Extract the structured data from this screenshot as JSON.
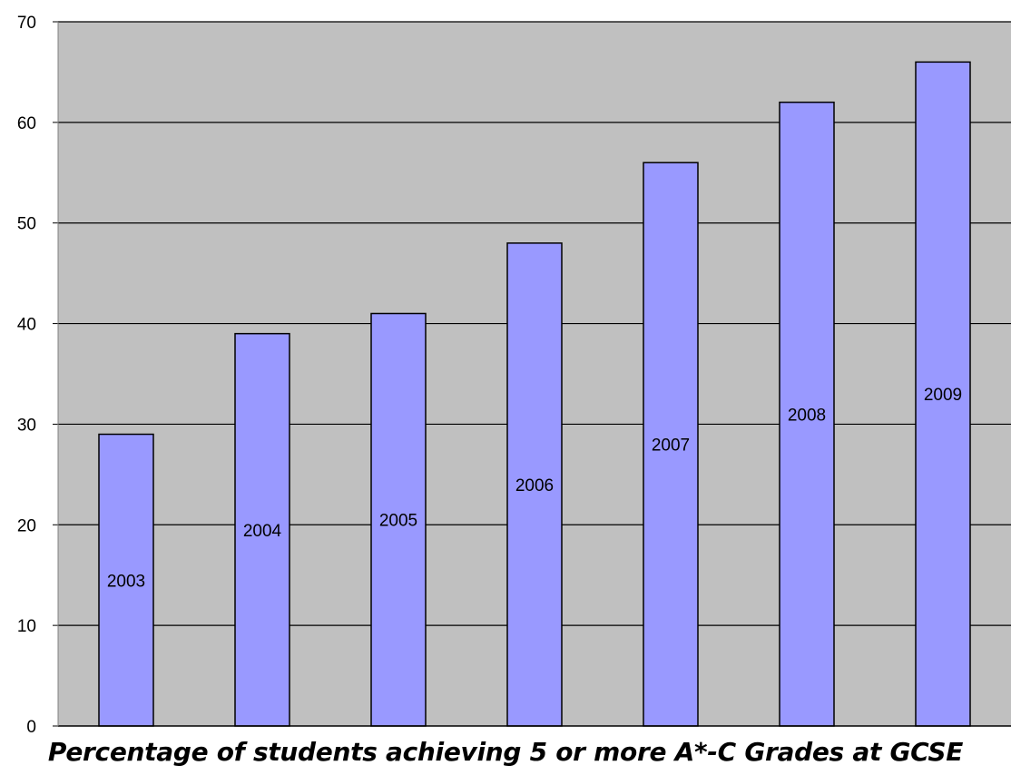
{
  "chart_data": {
    "type": "bar",
    "categories": [
      "2003",
      "2004",
      "2005",
      "2006",
      "2007",
      "2008",
      "2009"
    ],
    "values": [
      29,
      39,
      41,
      48,
      56,
      62,
      66
    ],
    "bar_labels": [
      "2003",
      "2004",
      "2005",
      "2006",
      "2007",
      "2008",
      "2009"
    ],
    "xlabel": "Percentage of students achieving 5 or more A*-C Grades at GCSE",
    "ylabel": "",
    "ylim": [
      0,
      70
    ],
    "yticks": [
      0,
      10,
      20,
      30,
      40,
      50,
      60,
      70
    ],
    "grid": true,
    "legend": "none",
    "colors": {
      "bar_fill": "#9999ff",
      "bar_stroke": "#000000",
      "plot_background": "#c0c0c0",
      "gridline": "#000000"
    }
  }
}
